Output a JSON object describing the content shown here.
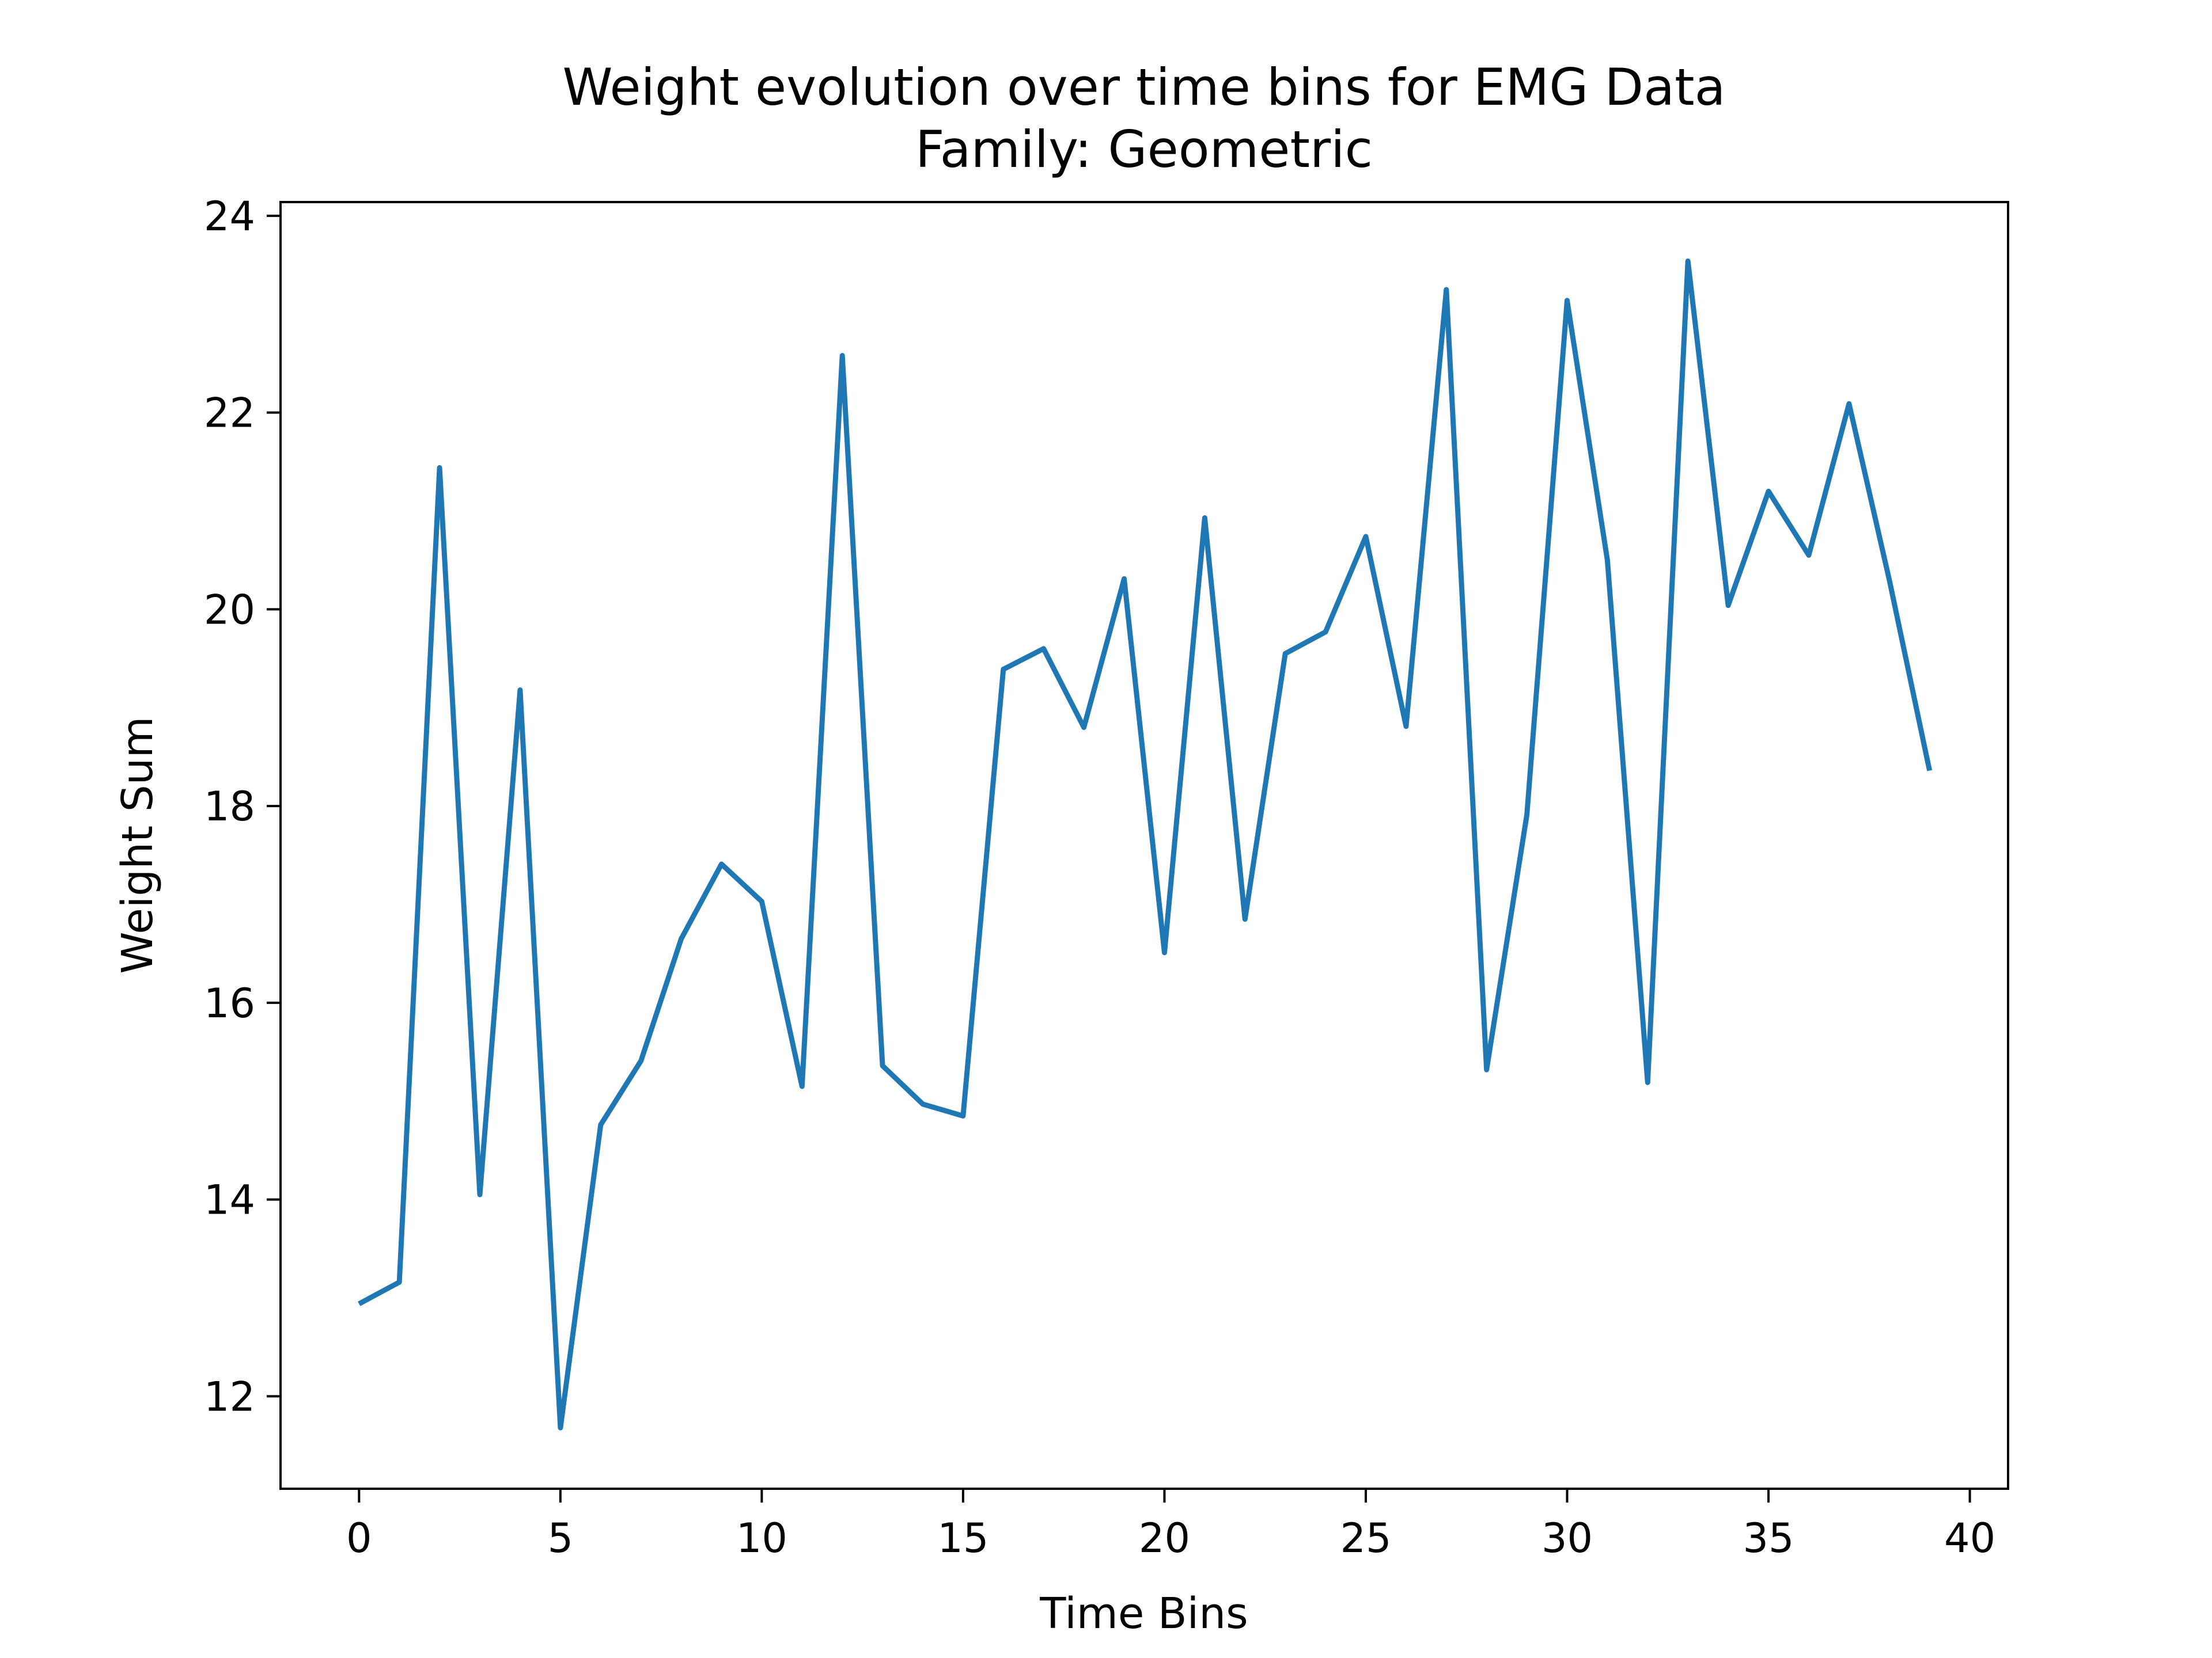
{
  "chart_data": {
    "type": "line",
    "title": "Weight evolution over time bins for EMG Data",
    "subtitle": "Family: Geometric",
    "xlabel": "Time Bins",
    "ylabel": "Weight Sum",
    "xlim": [
      -1.95,
      40.95
    ],
    "ylim": [
      11.06,
      24.14
    ],
    "x_ticks": [
      0,
      5,
      10,
      15,
      20,
      25,
      30,
      35,
      40
    ],
    "y_ticks": [
      12,
      14,
      16,
      18,
      20,
      22,
      24
    ],
    "grid": false,
    "legend": "none",
    "series": [
      {
        "color": "#1f77b4",
        "x": [
          0,
          1,
          2,
          3,
          4,
          5,
          6,
          7,
          8,
          9,
          10,
          11,
          12,
          13,
          14,
          15,
          16,
          17,
          18,
          19,
          20,
          21,
          22,
          23,
          24,
          25,
          26,
          27,
          28,
          29,
          30,
          31,
          32,
          33,
          34,
          35,
          36,
          37,
          38,
          39
        ],
        "values": [
          12.94,
          13.16,
          21.44,
          14.05,
          19.18,
          11.68,
          14.76,
          15.41,
          16.65,
          17.41,
          17.03,
          15.15,
          22.58,
          15.36,
          14.97,
          14.85,
          19.39,
          19.6,
          18.8,
          20.31,
          16.51,
          20.93,
          16.85,
          19.55,
          19.77,
          20.74,
          18.81,
          23.25,
          15.32,
          17.91,
          23.14,
          20.5,
          15.19,
          23.54,
          20.04,
          21.2,
          20.55,
          22.09,
          20.3,
          18.36
        ]
      }
    ]
  }
}
